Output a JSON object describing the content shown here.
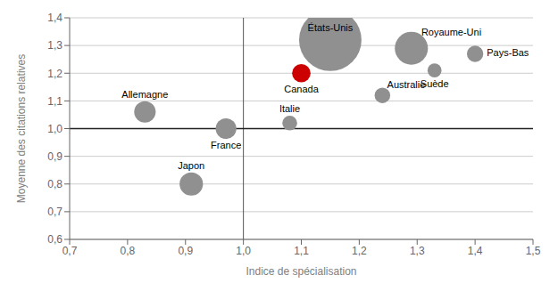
{
  "chart_data": {
    "type": "scatter",
    "xlabel": "Indice de spécialisation",
    "ylabel": "Moyenne des citations relatives",
    "names": [
      "États-Unis",
      "Canada",
      "Royaume-Uni",
      "Pays-Bas",
      "Suède",
      "Australie",
      "Italie",
      "France",
      "Allemagne",
      "Japon"
    ],
    "x": [
      1.15,
      1.1,
      1.29,
      1.4,
      1.33,
      1.24,
      1.08,
      0.97,
      0.83,
      0.91
    ],
    "y": [
      1.32,
      1.2,
      1.29,
      1.27,
      1.21,
      1.12,
      1.02,
      1.0,
      1.06,
      0.8
    ],
    "sizes": [
      3200,
      280,
      900,
      220,
      160,
      200,
      180,
      350,
      380,
      450
    ],
    "colors": [
      "#909090",
      "#cc0000",
      "#909090",
      "#909090",
      "#909090",
      "#909090",
      "#909090",
      "#909090",
      "#909090",
      "#909090"
    ],
    "xlim": [
      0.7,
      1.5
    ],
    "ylim": [
      0.6,
      1.4
    ],
    "xticks": [
      {
        "value": 0.7,
        "label": "0,7"
      },
      {
        "value": 0.8,
        "label": "0,8"
      },
      {
        "value": 0.9,
        "label": "0,9"
      },
      {
        "value": 1.0,
        "label": "1,0"
      },
      {
        "value": 1.1,
        "label": "1,1"
      },
      {
        "value": 1.2,
        "label": "1,2"
      },
      {
        "value": 1.3,
        "label": "1,3"
      },
      {
        "value": 1.4,
        "label": "1,4"
      },
      {
        "value": 1.5,
        "label": "1,5"
      }
    ],
    "yticks": [
      {
        "value": 0.6,
        "label": "0,6"
      },
      {
        "value": 0.7,
        "label": "0,7"
      },
      {
        "value": 0.8,
        "label": "0,8"
      },
      {
        "value": 0.9,
        "label": "0,9"
      },
      {
        "value": 1.0,
        "label": "1,0"
      },
      {
        "value": 1.1,
        "label": "1,1"
      },
      {
        "value": 1.2,
        "label": "1,2"
      },
      {
        "value": 1.3,
        "label": "1,3"
      },
      {
        "value": 1.4,
        "label": "1,4"
      }
    ],
    "vline_x": 1.0,
    "hline_y": 1.0,
    "grid": "y"
  }
}
